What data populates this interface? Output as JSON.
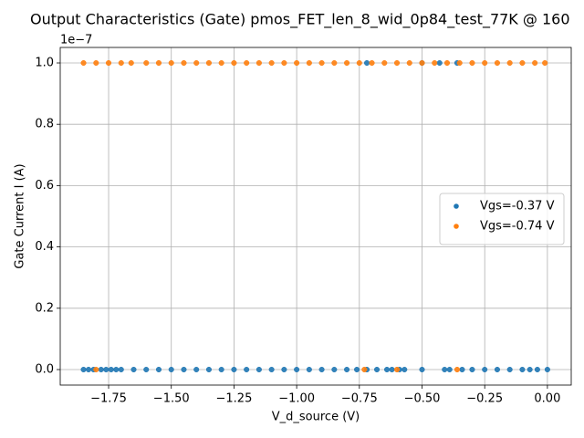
{
  "chart_data": {
    "type": "scatter",
    "title": "Output Characteristics (Gate) pmos_FET_len_8_wid_0p84_test_77K @ 160",
    "xlabel": "V_d_source (V)",
    "ylabel": "Gate Current I (A)",
    "y_offset_label": "1e−7",
    "xlim": [
      -1.943,
      0.095
    ],
    "ylim": [
      -0.0506,
      1.0506
    ],
    "xticks": [
      {
        "value": -1.75,
        "label": "−1.75"
      },
      {
        "value": -1.5,
        "label": "−1.50"
      },
      {
        "value": -1.25,
        "label": "−1.25"
      },
      {
        "value": -1.0,
        "label": "−1.00"
      },
      {
        "value": -0.75,
        "label": "−0.75"
      },
      {
        "value": -0.5,
        "label": "−0.50"
      },
      {
        "value": -0.25,
        "label": "−0.25"
      },
      {
        "value": 0,
        "label": "0.00"
      }
    ],
    "yticks": [
      {
        "value": 0,
        "label": "0.0"
      },
      {
        "value": 0.2,
        "label": "0.2"
      },
      {
        "value": 0.4,
        "label": "0.4"
      },
      {
        "value": 0.6,
        "label": "0.6"
      },
      {
        "value": 0.8,
        "label": "0.8"
      },
      {
        "value": 1.0,
        "label": "1.0"
      }
    ],
    "grid": true,
    "legend": "right",
    "series": [
      {
        "name": "Vgs=-0.37 V",
        "color": "#1f77b4",
        "x": [
          -1.85,
          -1.83,
          -1.81,
          -1.78,
          -1.76,
          -1.74,
          -1.72,
          -1.7,
          -1.65,
          -1.6,
          -1.55,
          -1.5,
          -1.45,
          -1.4,
          -1.35,
          -1.3,
          -1.25,
          -1.2,
          -1.15,
          -1.1,
          -1.05,
          -1.0,
          -0.95,
          -0.9,
          -0.85,
          -0.8,
          -0.76,
          -0.72,
          -0.68,
          -0.64,
          -0.62,
          -0.59,
          -0.57,
          -0.5,
          -0.41,
          -0.39,
          -0.34,
          -0.3,
          -0.25,
          -0.2,
          -0.15,
          -0.1,
          -0.07,
          -0.04,
          0.0,
          -0.72,
          -0.5,
          -0.43,
          -0.36
        ],
        "values": [
          0,
          0,
          0,
          0,
          0,
          0,
          0,
          0,
          0,
          0,
          0,
          0,
          0,
          0,
          0,
          0,
          0,
          0,
          0,
          0,
          0,
          0,
          0,
          0,
          0,
          0,
          0,
          0,
          0,
          0,
          0,
          0,
          0,
          0,
          0,
          0,
          0,
          0,
          0,
          0,
          0,
          0,
          0,
          0,
          0,
          1.0,
          1.0,
          1.0,
          1.0
        ]
      },
      {
        "name": "Vgs=-0.74 V",
        "color": "#ff7f0e",
        "x": [
          -1.85,
          -1.8,
          -1.75,
          -1.7,
          -1.66,
          -1.6,
          -1.55,
          -1.5,
          -1.45,
          -1.4,
          -1.35,
          -1.3,
          -1.25,
          -1.2,
          -1.15,
          -1.1,
          -1.05,
          -1.0,
          -0.95,
          -0.9,
          -0.85,
          -0.8,
          -0.75,
          -0.7,
          -0.65,
          -0.6,
          -0.55,
          -0.5,
          -0.45,
          -0.4,
          -0.35,
          -0.3,
          -0.25,
          -0.2,
          -0.15,
          -0.1,
          -0.05,
          -0.01,
          -1.8,
          -0.73,
          -0.6,
          -0.36
        ],
        "values": [
          1.0,
          1.0,
          1.0,
          1.0,
          1.0,
          1.0,
          1.0,
          1.0,
          1.0,
          1.0,
          1.0,
          1.0,
          1.0,
          1.0,
          1.0,
          1.0,
          1.0,
          1.0,
          1.0,
          1.0,
          1.0,
          1.0,
          1.0,
          1.0,
          1.0,
          1.0,
          1.0,
          1.0,
          1.0,
          1.0,
          1.0,
          1.0,
          1.0,
          1.0,
          1.0,
          1.0,
          1.0,
          1.0,
          0,
          0,
          0,
          0
        ]
      }
    ]
  }
}
